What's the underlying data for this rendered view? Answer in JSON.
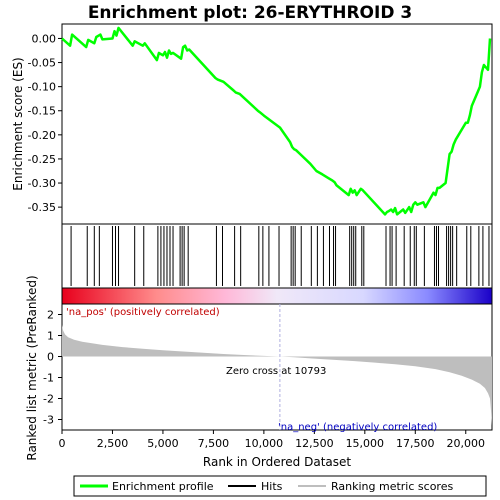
{
  "chart_data": {
    "type": "line",
    "title": "Enrichment plot: 26-ERYTHROID 3",
    "colors": {
      "enrichment": "#00ff00",
      "hits": "#000000",
      "metric": "#bebebe",
      "zero_line": "#b0b0e0"
    },
    "es_panel": {
      "ylabel": "Enrichment score (ES)",
      "xlim": [
        0,
        21300
      ],
      "ylim": [
        -0.385,
        0.03
      ],
      "yticks": [
        0.0,
        -0.05,
        -0.1,
        -0.15,
        -0.2,
        -0.25,
        -0.3,
        -0.35
      ],
      "ytick_labels": [
        "0.00",
        "-0.05",
        "-0.10",
        "-0.15",
        "-0.20",
        "-0.25",
        "-0.30",
        "-0.35"
      ],
      "grid": false,
      "series": [
        {
          "name": "Enrichment profile",
          "x": [
            0,
            400,
            500,
            1200,
            1300,
            1600,
            1700,
            1900,
            2000,
            2500,
            2600,
            2700,
            2800,
            3500,
            3600,
            4000,
            4100,
            4700,
            4800,
            5000,
            5100,
            5200,
            5300,
            5400,
            5500,
            5900,
            6000,
            6100,
            6200,
            6300,
            7600,
            7700,
            8000,
            8500,
            8600,
            8800,
            9700,
            9800,
            10000,
            10800,
            11300,
            11400,
            11500,
            11600,
            11800,
            12300,
            12600,
            12900,
            13200,
            13400,
            13500,
            13600,
            14200,
            14300,
            14400,
            14500,
            14600,
            14800,
            14900,
            16000,
            16100,
            16200,
            16300,
            16400,
            16500,
            16600,
            16900,
            17000,
            17200,
            17300,
            17400,
            17500,
            17600,
            17900,
            18000,
            18400,
            18500,
            18600,
            18700,
            19000,
            19100,
            19200,
            19300,
            19400,
            19500,
            20000,
            20100,
            20200,
            20300,
            20600,
            20700,
            20800,
            20900,
            21100,
            21200
          ],
          "y": [
            0.0,
            -0.015,
            0.008,
            -0.018,
            -0.003,
            -0.01,
            0.003,
            0.008,
            -0.002,
            0.0,
            0.015,
            0.006,
            0.022,
            -0.015,
            -0.006,
            -0.015,
            -0.01,
            -0.045,
            -0.03,
            -0.035,
            -0.028,
            -0.04,
            -0.025,
            -0.032,
            -0.03,
            -0.042,
            -0.018,
            -0.015,
            -0.025,
            -0.023,
            -0.082,
            -0.085,
            -0.09,
            -0.108,
            -0.112,
            -0.115,
            -0.15,
            -0.153,
            -0.16,
            -0.185,
            -0.215,
            -0.225,
            -0.23,
            -0.232,
            -0.24,
            -0.26,
            -0.275,
            -0.282,
            -0.29,
            -0.295,
            -0.298,
            -0.305,
            -0.325,
            -0.312,
            -0.32,
            -0.315,
            -0.325,
            -0.312,
            -0.315,
            -0.365,
            -0.36,
            -0.358,
            -0.355,
            -0.36,
            -0.352,
            -0.365,
            -0.355,
            -0.362,
            -0.35,
            -0.36,
            -0.345,
            -0.34,
            -0.345,
            -0.34,
            -0.35,
            -0.32,
            -0.325,
            -0.31,
            -0.31,
            -0.3,
            -0.27,
            -0.24,
            -0.235,
            -0.22,
            -0.21,
            -0.175,
            -0.175,
            -0.16,
            -0.14,
            -0.11,
            -0.1,
            -0.07,
            -0.055,
            -0.065,
            0.0
          ],
          "color": "#00ff00"
        }
      ]
    },
    "hits": [
      450,
      1250,
      1600,
      1850,
      2500,
      2650,
      2800,
      3600,
      4050,
      4750,
      4900,
      5050,
      5200,
      5350,
      5500,
      5850,
      5950,
      6050,
      6250,
      7650,
      7950,
      8550,
      8850,
      9750,
      9950,
      10250,
      10750,
      11350,
      11450,
      11550,
      11850,
      12350,
      12650,
      12950,
      13250,
      13450,
      13550,
      14250,
      14350,
      14450,
      14550,
      14850,
      14950,
      16050,
      16250,
      16350,
      16550,
      16950,
      17250,
      17450,
      17550,
      17950,
      18450,
      18550,
      18650,
      19050,
      19150,
      19250,
      19350,
      19550,
      20050,
      20250,
      20650,
      20850,
      21150
    ],
    "metric_panel": {
      "ylabel": "Ranked list metric (PreRanked)",
      "xlabel": "Rank in Ordered Dataset",
      "ylim": [
        -3.5,
        2.5
      ],
      "yticks": [
        2,
        1,
        0,
        -1,
        -2,
        -3
      ],
      "ytick_labels": [
        "2",
        "1",
        "0",
        "-1",
        "-2",
        "-3"
      ],
      "xticks": [
        0,
        2500,
        5000,
        7500,
        10000,
        12500,
        15000,
        17500,
        20000
      ],
      "xtick_labels": [
        "0",
        "2,500",
        "5,000",
        "7,500",
        "10,000",
        "12,500",
        "15,000",
        "17,500",
        "20,000"
      ],
      "zero_cross": 10793,
      "curve": {
        "x": [
          0,
          50,
          150,
          300,
          600,
          1000,
          2000,
          3000,
          4000,
          5000,
          6000,
          7000,
          8000,
          9000,
          10000,
          10793,
          11500,
          12500,
          13500,
          14500,
          15500,
          16500,
          17500,
          18500,
          19200,
          19800,
          20300,
          20700,
          20950,
          21100,
          21200,
          21260,
          21300
        ],
        "y": [
          1.5,
          1.25,
          1.05,
          0.92,
          0.8,
          0.7,
          0.55,
          0.45,
          0.37,
          0.3,
          0.24,
          0.18,
          0.12,
          0.07,
          0.03,
          0.0,
          -0.04,
          -0.1,
          -0.16,
          -0.22,
          -0.29,
          -0.37,
          -0.46,
          -0.6,
          -0.75,
          -0.92,
          -1.1,
          -1.3,
          -1.5,
          -1.75,
          -2.0,
          -2.7,
          -3.3
        ]
      }
    },
    "annotations": {
      "pos_label": "'na_pos' (positively correlated)",
      "neg_label": "'na_neg' (negatively correlated)",
      "zero_cross_label": "Zero cross at 10793"
    },
    "legend": {
      "placement": "bottom",
      "items": [
        {
          "label": "Enrichment profile",
          "color": "#00ff00"
        },
        {
          "label": "Hits",
          "color": "#000000"
        },
        {
          "label": "Ranking metric scores",
          "color": "#bebebe"
        }
      ]
    }
  }
}
